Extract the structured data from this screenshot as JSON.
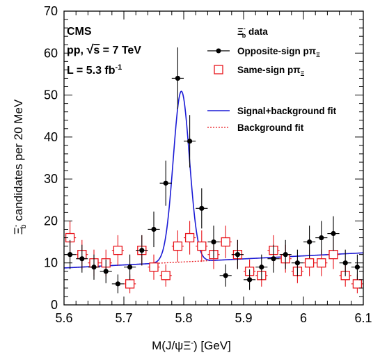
{
  "chart_data": {
    "type": "scatter",
    "xlabel": "M(J/ψΞ⁻) [GeV]",
    "ylabel": "Ξ⁻_b candidates per 20 MeV",
    "xlim": [
      5.6,
      6.1
    ],
    "ylim": [
      0,
      70
    ],
    "x_ticks": [
      "5.6",
      "5.7",
      "5.8",
      "5.9",
      "6",
      "6.1"
    ],
    "y_ticks": [
      "0",
      "10",
      "20",
      "30",
      "40",
      "50",
      "60",
      "70"
    ],
    "info": {
      "experiment": "CMS",
      "energy": "pp,  √s = 7 TeV",
      "lumi": "L = 5.3 fb⁻¹"
    },
    "legend_header": "Ξ⁻_b data",
    "legend": [
      {
        "label": "Opposite-sign pπΞ",
        "marker": "dot",
        "color": "#000000"
      },
      {
        "label": "Same-sign pπΞ",
        "marker": "open-square",
        "color": "#e8141b"
      },
      {
        "label": "Signal+background fit",
        "marker": "solid-line",
        "color": "#1a1ad6"
      },
      {
        "label": "Background fit",
        "marker": "dotted-line",
        "color": "#e8141b"
      }
    ],
    "series": [
      {
        "name": "Opposite-sign pπΞ",
        "color": "#000000",
        "x": [
          5.61,
          5.63,
          5.65,
          5.67,
          5.69,
          5.71,
          5.73,
          5.75,
          5.77,
          5.79,
          5.81,
          5.83,
          5.85,
          5.87,
          5.89,
          5.91,
          5.93,
          5.95,
          5.97,
          5.99,
          6.01,
          6.03,
          6.05,
          6.07,
          6.09
        ],
        "y": [
          12,
          11,
          9,
          8,
          5,
          9,
          13,
          18,
          29,
          54,
          39,
          23,
          15,
          7,
          12,
          6,
          9,
          11,
          12,
          10,
          15,
          16,
          17,
          10,
          9
        ]
      },
      {
        "name": "Same-sign pπΞ",
        "color": "#e8141b",
        "x": [
          5.61,
          5.63,
          5.65,
          5.67,
          5.69,
          5.71,
          5.73,
          5.75,
          5.77,
          5.79,
          5.81,
          5.83,
          5.85,
          5.87,
          5.89,
          5.91,
          5.93,
          5.95,
          5.97,
          5.99,
          6.01,
          6.03,
          6.05,
          6.07,
          6.09
        ],
        "y": [
          16,
          12,
          10,
          10,
          13,
          5,
          13,
          9,
          7,
          14,
          16,
          14,
          12,
          15,
          12,
          8,
          7,
          13,
          11,
          8,
          10,
          10,
          12,
          7,
          5
        ]
      }
    ],
    "fits": {
      "signal_plus_background": {
        "name": "Signal+background fit",
        "color": "#1a1ad6",
        "background_start": 8.8,
        "background_end": 12.4,
        "peak_mean": 5.796,
        "peak_sigma": 0.0135,
        "peak_amplitude": 40.7
      },
      "background": {
        "name": "Background fit",
        "color": "#e8141b",
        "start": 8.8,
        "end": 12.4
      }
    }
  }
}
